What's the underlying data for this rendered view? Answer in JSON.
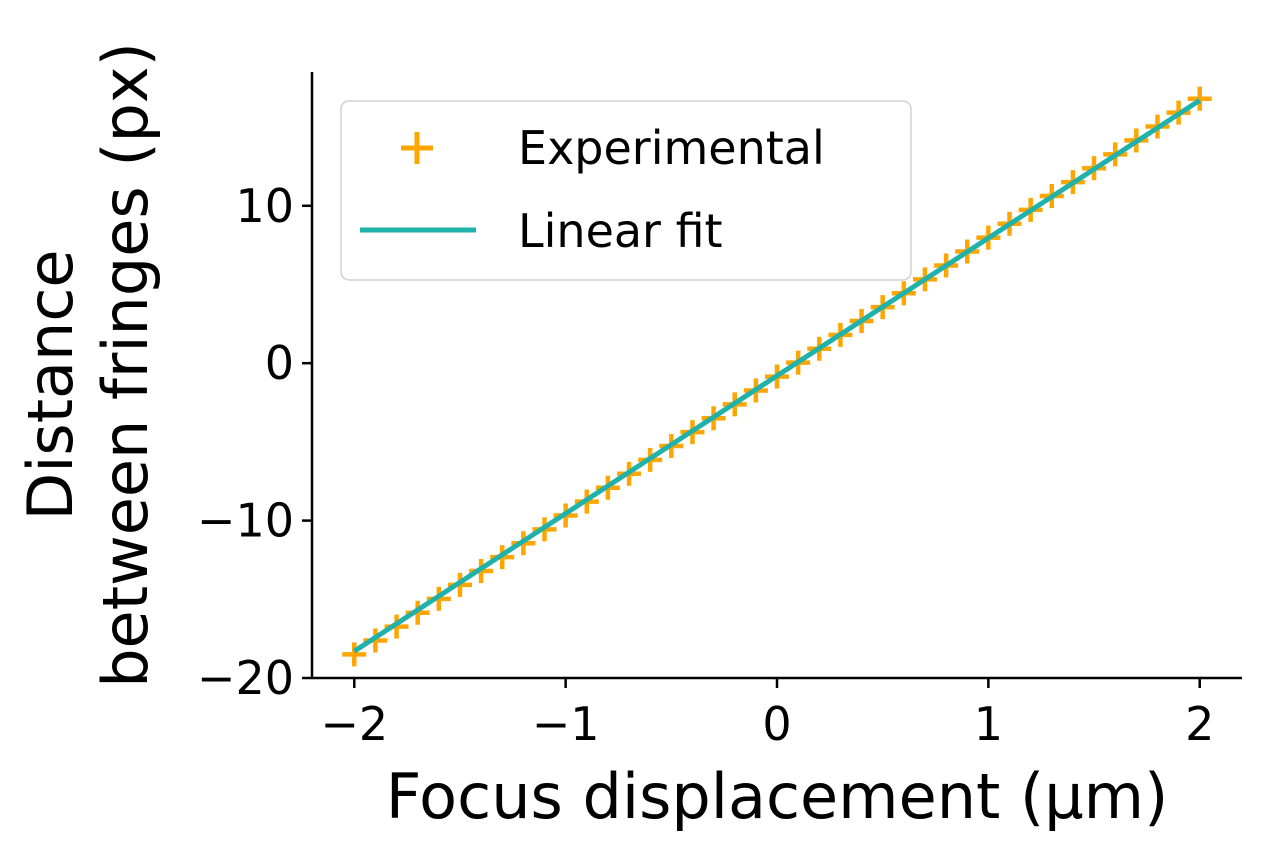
{
  "chart_data": {
    "type": "scatter",
    "xlabel": "Focus displacement (μm)",
    "ylabel_lines": [
      "Distance",
      "between fringes (px)"
    ],
    "xlim": [
      -2.2,
      2.2
    ],
    "ylim": [
      -20,
      18.5
    ],
    "xticks": [
      -2,
      -1,
      0,
      1,
      2
    ],
    "yticks": [
      -20,
      -10,
      0,
      10
    ],
    "xtick_labels": [
      "−2",
      "−1",
      "0",
      "1",
      "2"
    ],
    "ytick_labels": [
      "−20",
      "−10",
      "0",
      "10"
    ],
    "grid": false,
    "legend_position": "upper-left",
    "series": [
      {
        "name": "Experimental",
        "kind": "markers",
        "marker": "+",
        "color": "#FFA500",
        "x_start": -2,
        "x_end": 2,
        "x_step": 0.1,
        "y_start": -18.5,
        "y_end": 16.8
      },
      {
        "name": "Linear fit",
        "kind": "line",
        "color": "#20B2AA",
        "x": [
          -2,
          2
        ],
        "y": [
          -18.3,
          16.7
        ]
      }
    ]
  }
}
